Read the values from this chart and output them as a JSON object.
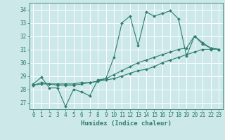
{
  "xlabel": "Humidex (Indice chaleur)",
  "bg_color": "#cce8e8",
  "grid_color": "#ffffff",
  "line_color": "#2e7d6e",
  "xlim": [
    -0.5,
    23.5
  ],
  "ylim": [
    26.5,
    34.5
  ],
  "yticks": [
    27,
    28,
    29,
    30,
    31,
    32,
    33,
    34
  ],
  "xticks": [
    0,
    1,
    2,
    3,
    4,
    5,
    6,
    7,
    8,
    9,
    10,
    11,
    12,
    13,
    14,
    15,
    16,
    17,
    18,
    19,
    20,
    21,
    22,
    23
  ],
  "line1_x": [
    0,
    1,
    2,
    3,
    4,
    5,
    6,
    7,
    8,
    9,
    10,
    11,
    12,
    13,
    14,
    15,
    16,
    17,
    18,
    19,
    20,
    21,
    22,
    23
  ],
  "line1_y": [
    28.4,
    28.9,
    28.1,
    28.1,
    26.7,
    28.0,
    27.8,
    27.5,
    28.7,
    28.8,
    30.4,
    33.0,
    33.5,
    31.3,
    33.8,
    33.5,
    33.7,
    33.9,
    33.3,
    30.5,
    32.0,
    31.4,
    31.1,
    31.0
  ],
  "line2_x": [
    0,
    1,
    2,
    3,
    4,
    5,
    6,
    7,
    8,
    9,
    10,
    11,
    12,
    13,
    14,
    15,
    16,
    17,
    18,
    19,
    20,
    21,
    22,
    23
  ],
  "line2_y": [
    28.3,
    28.5,
    28.4,
    28.3,
    28.3,
    28.3,
    28.4,
    28.5,
    28.6,
    28.8,
    29.1,
    29.4,
    29.7,
    30.0,
    30.2,
    30.4,
    30.6,
    30.8,
    31.0,
    31.1,
    32.0,
    31.5,
    31.1,
    31.0
  ],
  "line3_x": [
    0,
    1,
    2,
    3,
    4,
    5,
    6,
    7,
    8,
    9,
    10,
    11,
    12,
    13,
    14,
    15,
    16,
    17,
    18,
    19,
    20,
    21,
    22,
    23
  ],
  "line3_y": [
    28.3,
    28.4,
    28.4,
    28.4,
    28.4,
    28.4,
    28.5,
    28.5,
    28.6,
    28.7,
    28.8,
    29.0,
    29.2,
    29.4,
    29.5,
    29.7,
    30.0,
    30.2,
    30.4,
    30.6,
    30.8,
    31.0,
    31.0,
    31.0
  ],
  "marker": "D",
  "marker_size": 2.0,
  "linewidth": 0.8,
  "tick_fontsize": 5.5,
  "label_fontsize": 6.5
}
